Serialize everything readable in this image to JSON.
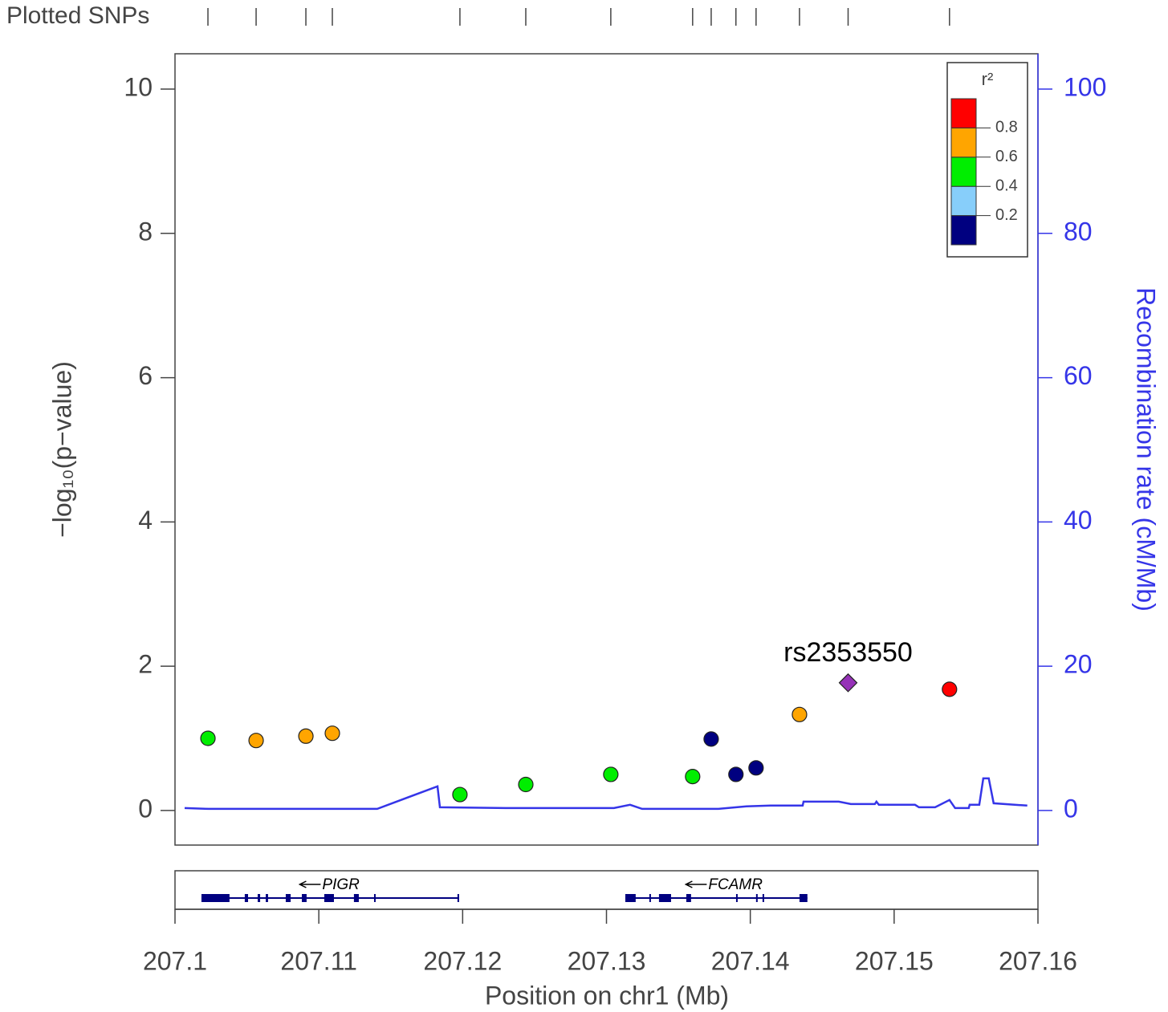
{
  "chart_data": {
    "type": "scatter",
    "rug_label": "Plotted SNPs",
    "xlabel": "Position on chr1 (Mb)",
    "ylabel": "−log₁₀(p−value)",
    "y2label": "Recombination rate (cM/Mb)",
    "xlim": [
      207.1,
      207.16
    ],
    "xticks": [
      207.1,
      207.11,
      207.12,
      207.13,
      207.14,
      207.15,
      207.16
    ],
    "ylim": [
      -0.48,
      10.49
    ],
    "yticks": [
      0,
      2,
      4,
      6,
      8,
      10
    ],
    "y2lim": [
      -4.8,
      104.9
    ],
    "y2ticks": [
      0,
      20,
      40,
      60,
      80,
      100
    ],
    "x": [
      207.10229,
      207.10564,
      207.1091,
      207.11094,
      207.11981,
      207.12439,
      207.1303,
      207.13599,
      207.13728,
      207.139,
      207.1404,
      207.14342,
      207.1468,
      207.15385
    ],
    "values": [
      1.0,
      0.97,
      1.03,
      1.07,
      0.22,
      0.36,
      0.5,
      0.47,
      0.99,
      0.5,
      0.59,
      1.33,
      1.77,
      1.68
    ],
    "colors": [
      "#00ee00",
      "#ffa500",
      "#ffa500",
      "#ffa500",
      "#00ee00",
      "#00ee00",
      "#00ee00",
      "#00ee00",
      "#000080",
      "#000080",
      "#000080",
      "#ffa500",
      "#9632b8",
      "#ff0000"
    ],
    "markers": [
      "circle",
      "circle",
      "circle",
      "circle",
      "circle",
      "circle",
      "circle",
      "circle",
      "circle",
      "circle",
      "circle",
      "circle",
      "diamond",
      "circle"
    ],
    "point_labels": [
      null,
      null,
      null,
      null,
      null,
      null,
      null,
      null,
      null,
      null,
      null,
      null,
      "rs2353550",
      null
    ],
    "recombination": {
      "axis": "y2",
      "color": "#3535e8",
      "x": [
        207.10067,
        207.10234,
        207.11406,
        207.11825,
        207.11842,
        207.12299,
        207.13052,
        207.13164,
        207.13248,
        207.13778,
        207.13973,
        207.14141,
        207.14364,
        207.1437,
        207.14615,
        207.14699,
        207.14866,
        207.14877,
        207.14894,
        207.15145,
        207.15173,
        207.15285,
        207.15385,
        207.15424,
        207.15519,
        207.15525,
        207.15592,
        207.1562,
        207.15658,
        207.15692,
        207.15926
      ],
      "values": [
        0.33,
        0.22,
        0.22,
        3.34,
        0.44,
        0.33,
        0.33,
        0.78,
        0.22,
        0.22,
        0.56,
        0.67,
        0.67,
        1.22,
        1.22,
        0.89,
        0.89,
        1.22,
        0.78,
        0.78,
        0.44,
        0.44,
        1.45,
        0.33,
        0.33,
        0.78,
        0.78,
        4.45,
        4.45,
        1.0,
        0.67
      ]
    },
    "legend": {
      "title": "r²",
      "lim": [
        0,
        1
      ],
      "colors": [
        "#000080",
        "#87cefa",
        "#00ee00",
        "#ffa500",
        "#ff0000"
      ],
      "ticks": [
        0.2,
        0.4,
        0.6,
        0.8
      ]
    },
    "genes": [
      {
        "name": "PIGR",
        "start": 207.10184,
        "end": 207.11975,
        "exons": [
          [
            207.10184,
            207.10379
          ],
          [
            207.10485,
            207.10508
          ],
          [
            207.10575,
            207.10592
          ],
          [
            207.10631,
            207.10647
          ],
          [
            207.1077,
            207.10804
          ],
          [
            207.10882,
            207.10915
          ],
          [
            207.11038,
            207.11105
          ],
          [
            207.11244,
            207.11278
          ],
          [
            207.11384,
            207.11395
          ],
          [
            207.11964,
            207.11975
          ]
        ]
      },
      {
        "name": "FCAMR",
        "start": 207.13131,
        "end": 207.14397,
        "exons": [
          [
            207.13131,
            207.13203
          ],
          [
            207.13298,
            207.13309
          ],
          [
            207.13365,
            207.13449
          ],
          [
            207.13555,
            207.13588
          ],
          [
            207.13901,
            207.13912
          ],
          [
            207.1404,
            207.14051
          ],
          [
            207.14085,
            207.14096
          ],
          [
            207.14342,
            207.14397
          ]
        ]
      }
    ]
  }
}
